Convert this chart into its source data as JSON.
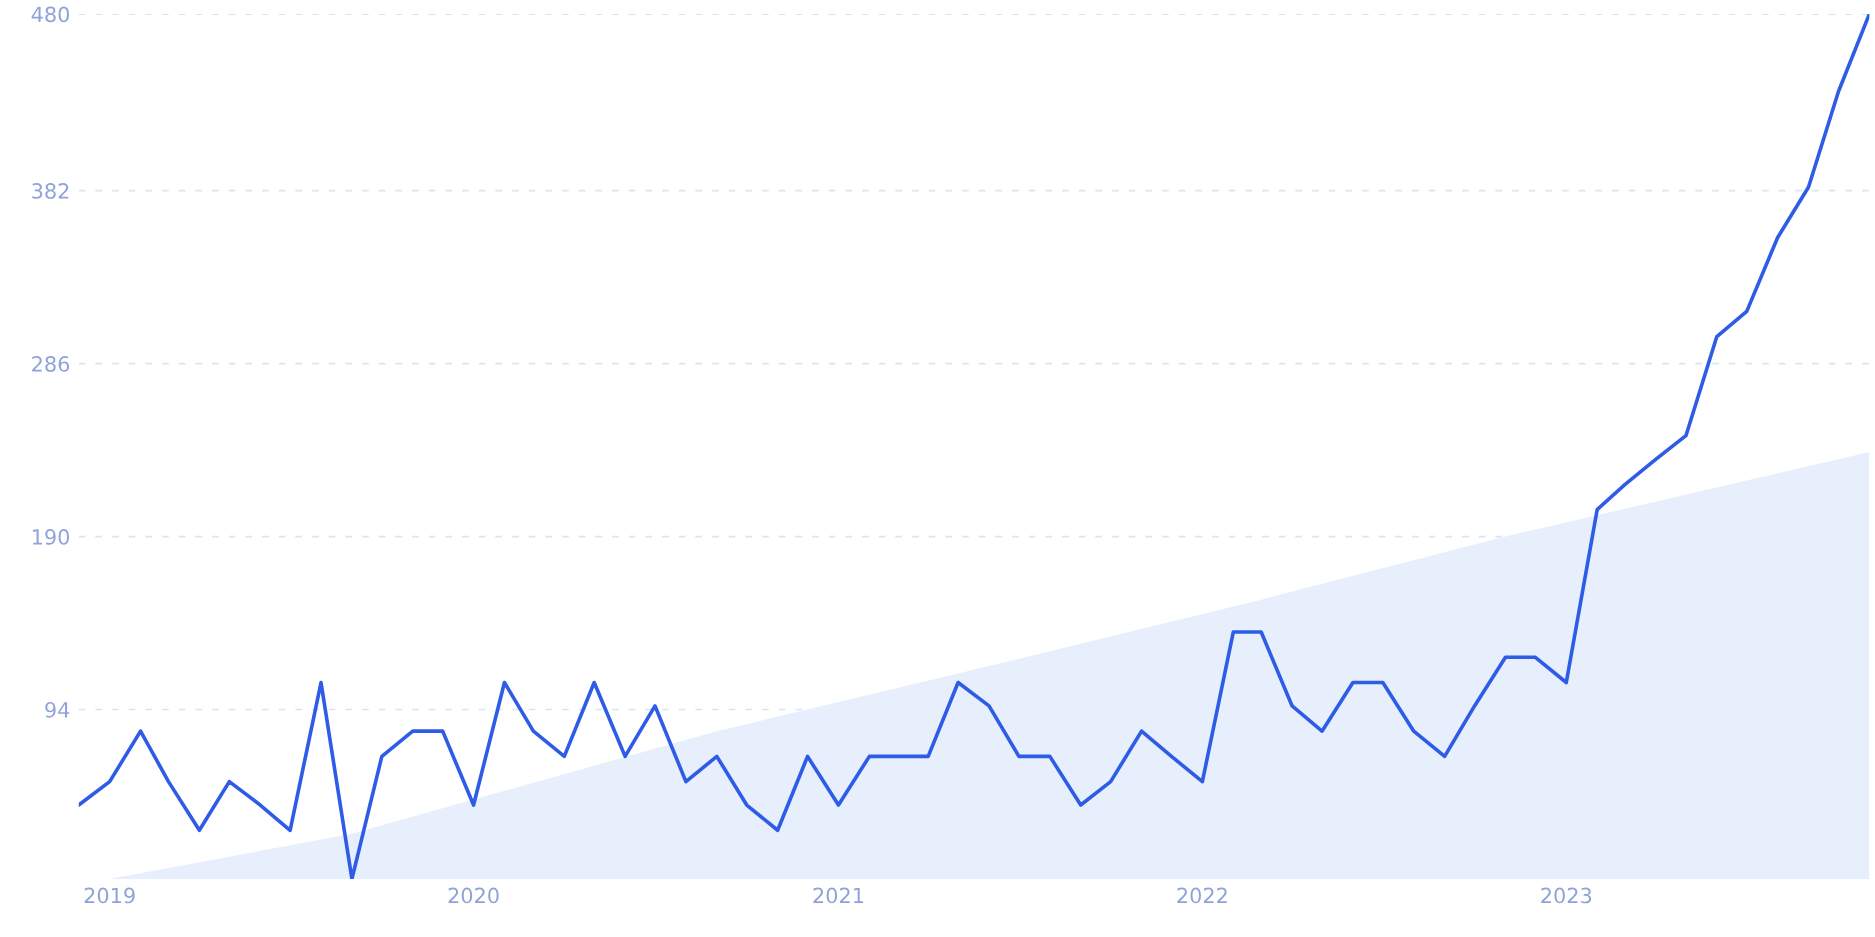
{
  "chart_data": {
    "type": "line",
    "series": [
      {
        "type": "area",
        "color": "#e6effb",
        "x": [
          "2018-12",
          "2019-01",
          "2019-09",
          "2020-09",
          "2021-05",
          "2022-03",
          "2022-11",
          "2023-11"
        ],
        "values": [
          0,
          0,
          25,
          82,
          114,
          155,
          190,
          237
        ]
      },
      {
        "color": "#2e5ce6",
        "x": [
          "2018-12",
          "2019-01",
          "2019-02",
          "2019-03",
          "2019-04",
          "2019-05",
          "2019-06",
          "2019-07",
          "2019-08",
          "2019-09",
          "2019-10",
          "2019-11",
          "2019-12",
          "2020-01",
          "2020-02",
          "2020-03",
          "2020-04",
          "2020-05",
          "2020-06",
          "2020-07",
          "2020-08",
          "2020-09",
          "2020-10",
          "2020-11",
          "2020-12",
          "2021-01",
          "2021-02",
          "2021-03",
          "2021-04",
          "2021-05",
          "2021-06",
          "2021-07",
          "2021-08",
          "2021-09",
          "2021-10",
          "2021-11",
          "2021-12",
          "2022-01",
          "2022-02",
          "2022-03",
          "2022-04",
          "2022-05",
          "2022-06",
          "2022-07",
          "2022-08",
          "2022-09",
          "2022-10",
          "2022-11",
          "2022-12",
          "2023-01",
          "2023-02",
          "2023-03",
          "2023-04",
          "2023-05",
          "2023-06",
          "2023-07",
          "2023-08",
          "2023-09",
          "2023-10",
          "2023-11"
        ],
        "values": [
          41,
          54,
          82,
          54,
          27,
          54,
          41,
          27,
          109,
          0,
          68,
          82,
          82,
          41,
          109,
          82,
          68,
          109,
          68,
          96,
          54,
          68,
          41,
          27,
          68,
          41,
          68,
          68,
          68,
          109,
          96,
          68,
          68,
          41,
          54,
          82,
          68,
          54,
          137,
          137,
          96,
          82,
          109,
          109,
          82,
          68,
          96,
          123,
          123,
          109,
          205,
          219,
          233,
          246,
          301,
          315,
          356,
          384,
          437,
          480
        ]
      }
    ],
    "xlim": [
      "2018-12",
      "2023-11"
    ],
    "xticks": [
      {
        "value": "2019-01",
        "label": "2019"
      },
      {
        "value": "2020-01",
        "label": "2020"
      },
      {
        "value": "2021-01",
        "label": "2021"
      },
      {
        "value": "2022-01",
        "label": "2022"
      },
      {
        "value": "2023-01",
        "label": "2023"
      }
    ],
    "ylim": [
      0,
      480
    ],
    "yticks": [
      94,
      190,
      286,
      382,
      480
    ],
    "grid": "y",
    "line_style": "solid",
    "marker": "none",
    "legend": false
  }
}
